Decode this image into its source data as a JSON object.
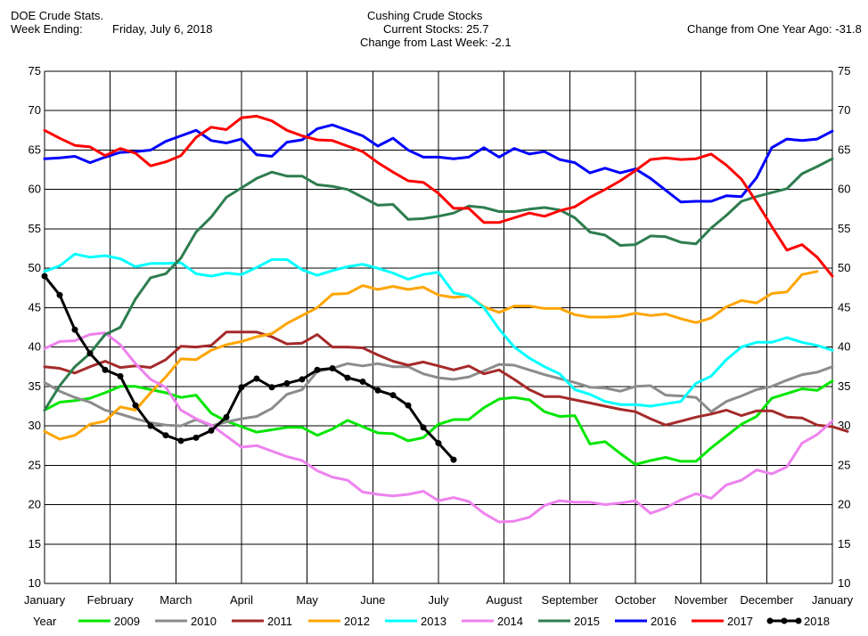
{
  "header": {
    "app_title": "DOE Crude Stats.",
    "week_label": "Week Ending:",
    "week_value": "Friday, July 6, 2018",
    "center_title": "Cushing Crude Stocks",
    "current_label": "Current Stocks:",
    "current_value": "25.7",
    "change_week_label": "Change from Last Week:",
    "change_week_value": "-2.1",
    "change_year_label": "Change from One Year Ago:",
    "change_year_value": "-31.8"
  },
  "chart_data": {
    "type": "line",
    "title": "Cushing Crude Stocks",
    "ylim": [
      10,
      75
    ],
    "yticks": [
      10,
      15,
      20,
      25,
      30,
      35,
      40,
      45,
      50,
      55,
      60,
      65,
      70,
      75
    ],
    "x_range_weeks": [
      0,
      52
    ],
    "months": [
      "January",
      "February",
      "March",
      "April",
      "May",
      "June",
      "July",
      "August",
      "September",
      "October",
      "November",
      "December",
      "January"
    ],
    "grid": true,
    "legend_position": "bottom",
    "legend_title": "Year",
    "series": [
      {
        "name": "2009",
        "color": "#00e600",
        "marker": false,
        "values": [
          32.0,
          33.0,
          33.2,
          33.5,
          34.2,
          35.0,
          35.0,
          34.6,
          34.2,
          33.6,
          33.9,
          31.6,
          30.6,
          29.9,
          29.2,
          29.5,
          29.8,
          29.8,
          28.8,
          29.6,
          30.7,
          29.9,
          29.1,
          29.0,
          28.1,
          28.5,
          30.2,
          30.8,
          30.8,
          32.3,
          33.4,
          33.6,
          33.3,
          31.8,
          31.2,
          31.3,
          27.7,
          28.0,
          26.5,
          25.1,
          25.6,
          26.0,
          25.5,
          25.5,
          27.2,
          28.7,
          30.2,
          31.2,
          33.5,
          34.1,
          34.7,
          34.5,
          35.7
        ]
      },
      {
        "name": "2010",
        "color": "#8c8c8c",
        "marker": false,
        "values": [
          35.5,
          34.4,
          33.6,
          33.0,
          32.0,
          31.5,
          30.9,
          30.4,
          30.1,
          30.0,
          30.8,
          30.0,
          30.5,
          30.9,
          31.2,
          32.2,
          34.0,
          34.6,
          36.9,
          37.3,
          37.9,
          37.6,
          37.9,
          37.5,
          37.5,
          36.6,
          36.1,
          35.9,
          36.2,
          37.0,
          37.8,
          37.7,
          37.1,
          36.5,
          36.0,
          35.5,
          34.9,
          34.8,
          34.4,
          35.0,
          35.1,
          33.9,
          33.8,
          33.6,
          31.8,
          33.1,
          33.8,
          34.6,
          35.0,
          35.8,
          36.5,
          36.8,
          37.5
        ]
      },
      {
        "name": "2011",
        "color": "#a52a2a",
        "marker": false,
        "values": [
          37.5,
          37.3,
          36.7,
          37.5,
          38.2,
          37.4,
          37.6,
          37.4,
          38.4,
          40.1,
          40.0,
          40.2,
          41.9,
          41.9,
          41.9,
          41.3,
          40.4,
          40.5,
          41.6,
          40.0,
          40.0,
          39.9,
          39.0,
          38.2,
          37.7,
          38.1,
          37.6,
          37.1,
          37.6,
          36.6,
          37.1,
          35.9,
          34.6,
          33.7,
          33.7,
          33.3,
          32.9,
          32.5,
          32.1,
          31.8,
          30.9,
          30.1,
          30.6,
          31.1,
          31.5,
          32.0,
          31.3,
          31.9,
          31.9,
          31.1,
          31.0,
          30.1,
          29.9,
          29.3
        ]
      },
      {
        "name": "2012",
        "color": "#ffa500",
        "marker": false,
        "values": [
          29.3,
          28.3,
          28.8,
          30.2,
          30.6,
          32.4,
          32.0,
          34.2,
          36.2,
          38.5,
          38.4,
          39.6,
          40.3,
          40.7,
          41.3,
          41.7,
          43.0,
          44.0,
          45.0,
          46.7,
          46.8,
          47.8,
          47.3,
          47.7,
          47.3,
          47.6,
          46.6,
          46.3,
          46.5,
          45.1,
          44.4,
          45.2,
          45.2,
          44.9,
          44.9,
          44.1,
          43.8,
          43.8,
          43.9,
          44.3,
          44.0,
          44.2,
          43.6,
          43.1,
          43.7,
          45.1,
          45.9,
          45.6,
          46.8,
          47.0,
          49.2,
          49.6
        ]
      },
      {
        "name": "2013",
        "color": "#00ffff",
        "marker": false,
        "values": [
          49.6,
          50.3,
          51.8,
          51.4,
          51.6,
          51.2,
          50.2,
          50.6,
          50.6,
          50.7,
          49.3,
          49.0,
          49.4,
          49.2,
          50.1,
          51.1,
          51.1,
          49.8,
          49.1,
          49.7,
          50.2,
          50.5,
          50.0,
          49.4,
          48.6,
          49.2,
          49.5,
          46.9,
          46.5,
          45.0,
          42.3,
          40.0,
          38.6,
          37.5,
          36.6,
          34.6,
          34.0,
          33.1,
          32.7,
          32.7,
          32.5,
          32.8,
          33.1,
          35.4,
          36.3,
          38.4,
          40.0,
          40.6,
          40.6,
          41.2,
          40.6,
          40.2,
          39.6
        ]
      },
      {
        "name": "2014",
        "color": "#ee82ee",
        "marker": false,
        "values": [
          39.8,
          40.7,
          40.8,
          41.6,
          41.8,
          40.3,
          37.9,
          35.9,
          34.9,
          32.0,
          30.9,
          30.1,
          28.7,
          27.3,
          27.5,
          26.8,
          26.1,
          25.6,
          24.3,
          23.5,
          23.1,
          21.6,
          21.3,
          21.1,
          21.3,
          21.7,
          20.5,
          20.9,
          20.4,
          18.9,
          17.8,
          17.9,
          18.4,
          19.9,
          20.5,
          20.3,
          20.3,
          20.0,
          20.2,
          20.5,
          18.9,
          19.6,
          20.6,
          21.4,
          20.8,
          22.5,
          23.1,
          24.4,
          23.9,
          24.8,
          27.8,
          28.9,
          30.6
        ]
      },
      {
        "name": "2015",
        "color": "#2e7d4f",
        "marker": false,
        "values": [
          32.0,
          35.1,
          37.5,
          39.2,
          41.6,
          42.5,
          46.1,
          48.8,
          49.3,
          51.3,
          54.6,
          56.5,
          59.0,
          60.2,
          61.4,
          62.2,
          61.7,
          61.7,
          60.6,
          60.4,
          60.0,
          59.0,
          58.0,
          58.1,
          56.2,
          56.3,
          56.6,
          57.0,
          57.9,
          57.7,
          57.2,
          57.2,
          57.5,
          57.7,
          57.4,
          56.4,
          54.6,
          54.2,
          52.9,
          53.0,
          54.1,
          54.0,
          53.3,
          53.1,
          55.1,
          56.7,
          58.5,
          59.1,
          59.6,
          60.1,
          62.0,
          62.9,
          63.9
        ]
      },
      {
        "name": "2016",
        "color": "#0000ff",
        "marker": false,
        "values": [
          63.9,
          64.0,
          64.2,
          63.4,
          64.1,
          64.7,
          64.8,
          65.0,
          66.1,
          66.8,
          67.5,
          66.2,
          65.9,
          66.4,
          64.4,
          64.2,
          66.0,
          66.3,
          67.7,
          68.2,
          67.5,
          66.8,
          65.5,
          66.5,
          65.0,
          64.1,
          64.1,
          63.9,
          64.1,
          65.3,
          64.1,
          65.2,
          64.5,
          64.8,
          63.8,
          63.4,
          62.1,
          62.7,
          62.1,
          62.6,
          61.4,
          59.9,
          58.4,
          58.5,
          58.5,
          59.2,
          59.1,
          61.5,
          65.3,
          66.4,
          66.2,
          66.4,
          67.4
        ]
      },
      {
        "name": "2017",
        "color": "#ff0000",
        "marker": false,
        "values": [
          67.5,
          66.5,
          65.6,
          65.4,
          64.3,
          65.2,
          64.6,
          63.0,
          63.5,
          64.3,
          66.6,
          67.9,
          67.6,
          69.1,
          69.3,
          68.7,
          67.5,
          66.8,
          66.3,
          66.2,
          65.5,
          64.8,
          63.4,
          62.2,
          61.1,
          60.9,
          59.5,
          57.6,
          57.6,
          55.8,
          55.8,
          56.4,
          57.0,
          56.6,
          57.3,
          57.8,
          59.0,
          60.0,
          61.1,
          62.4,
          63.8,
          64.0,
          63.8,
          63.9,
          64.5,
          63.1,
          61.3,
          58.4,
          55.3,
          52.3,
          53.0,
          51.4,
          49.0
        ]
      },
      {
        "name": "2018",
        "color": "#000000",
        "marker": true,
        "values": [
          49.0,
          46.6,
          42.2,
          39.2,
          37.1,
          36.3,
          32.6,
          30.0,
          28.8,
          28.1,
          28.5,
          29.4,
          31.1,
          34.9,
          36.0,
          34.9,
          35.4,
          35.9,
          37.1,
          37.3,
          36.1,
          35.6,
          34.5,
          33.9,
          32.6,
          29.8,
          27.8,
          25.7
        ]
      }
    ]
  }
}
